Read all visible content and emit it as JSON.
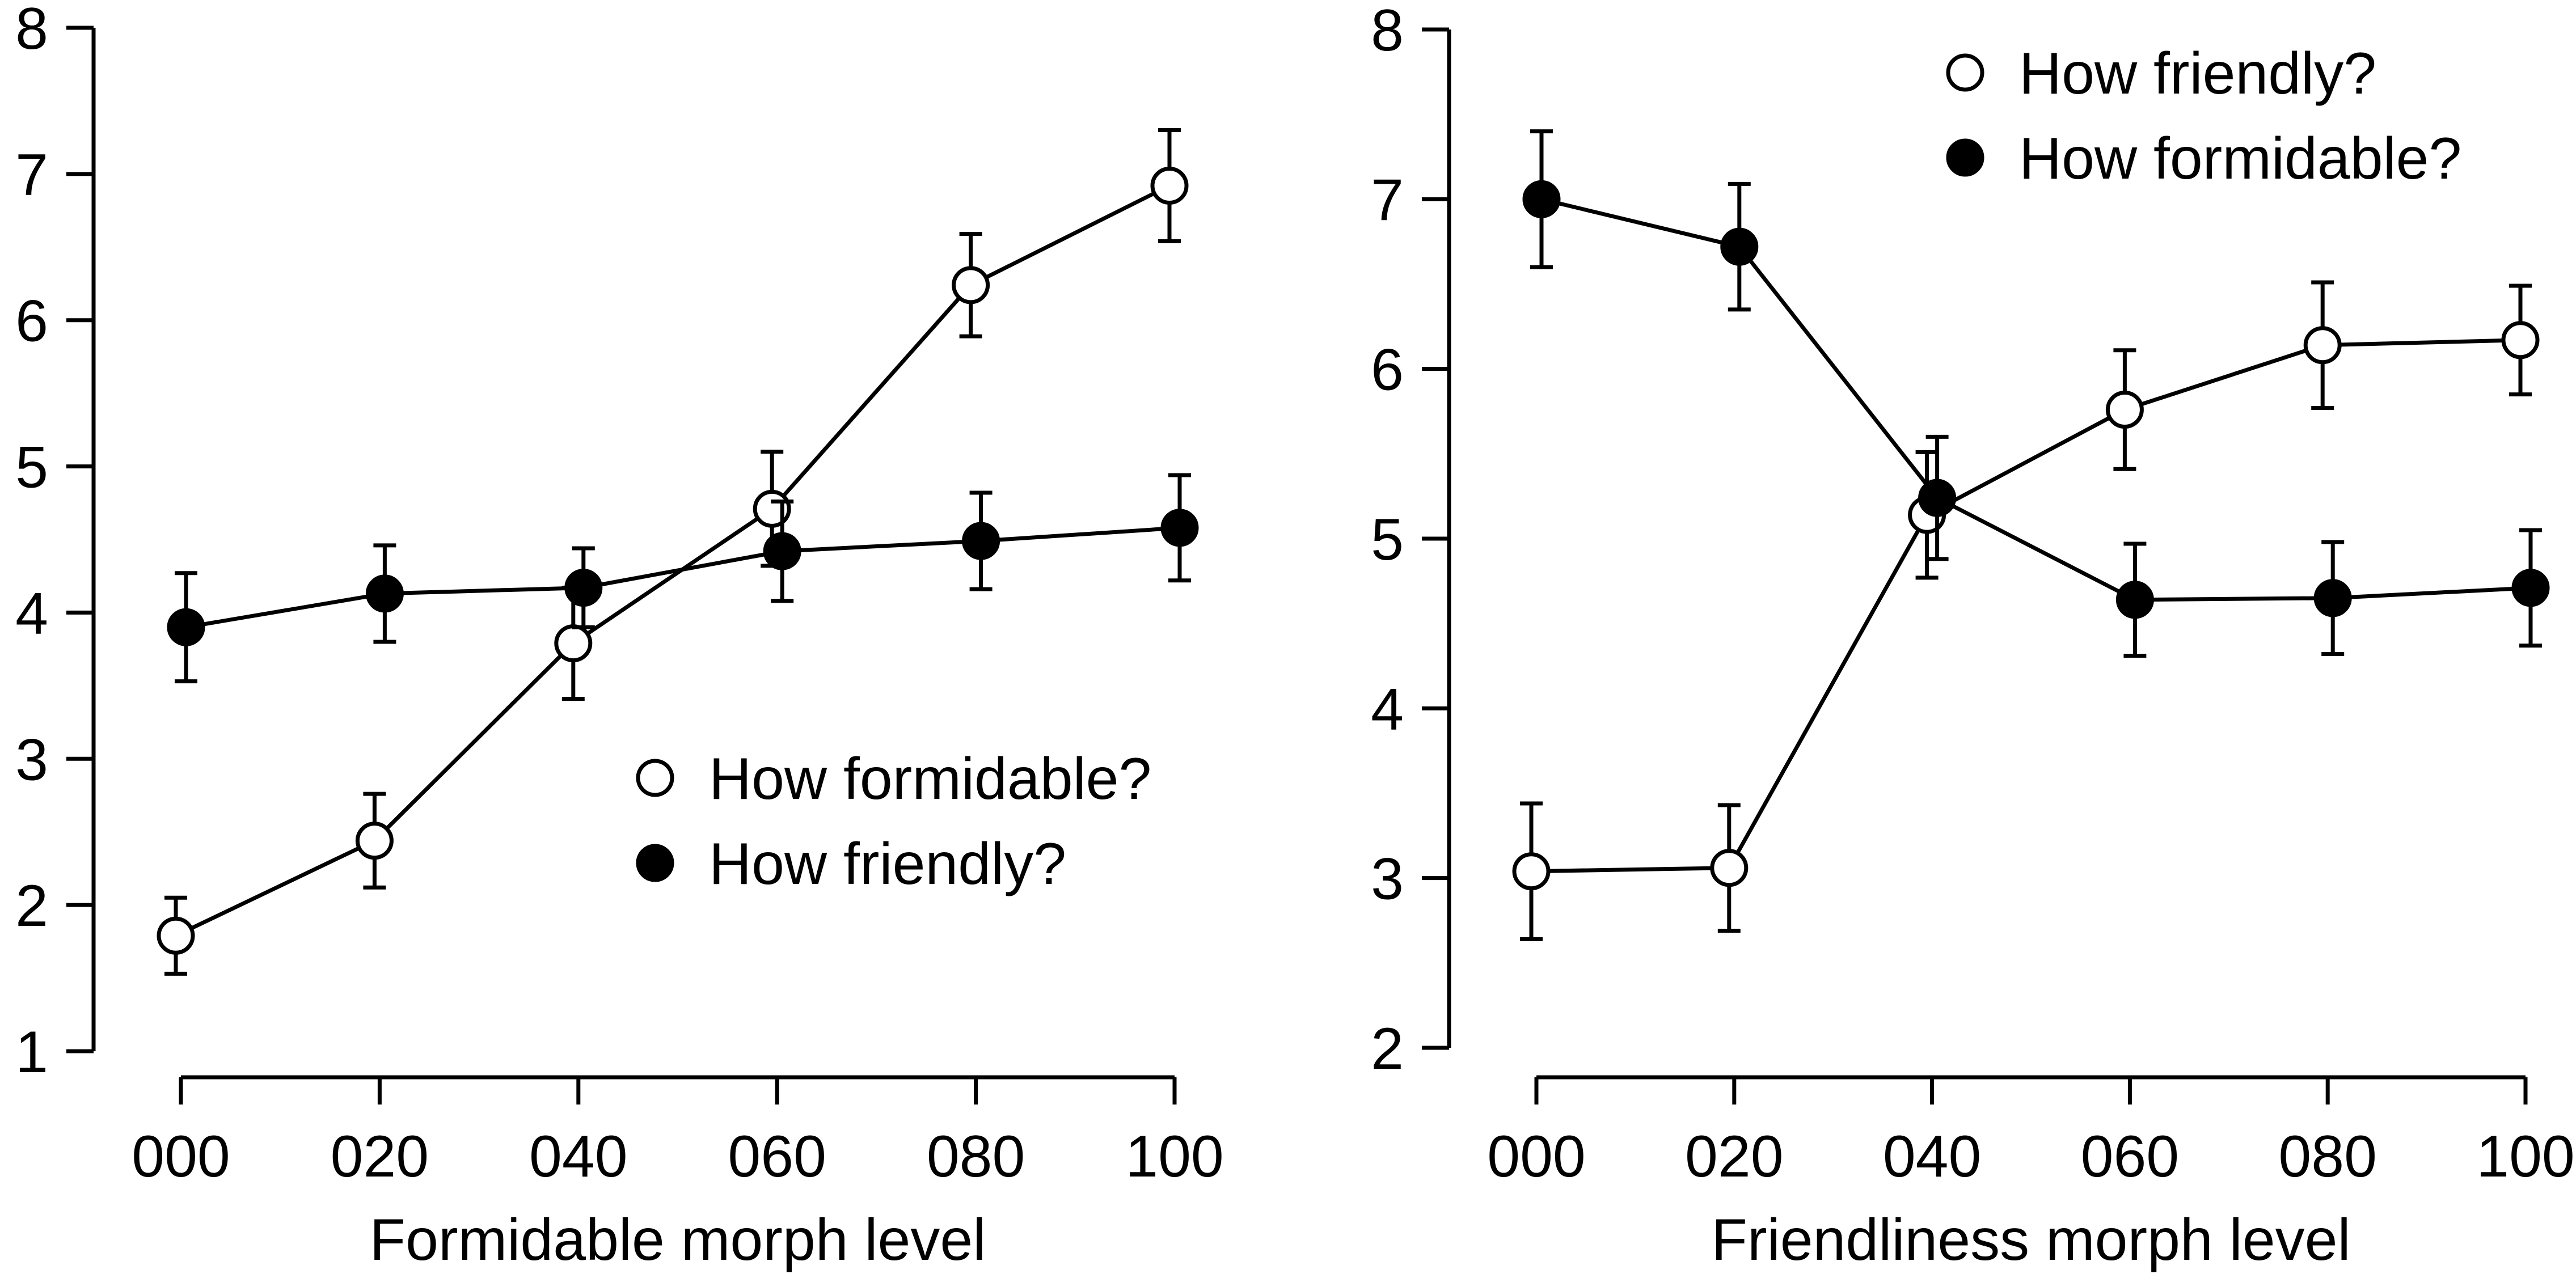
{
  "chart_data": [
    {
      "type": "line",
      "xlabel": "Formidable morph level",
      "ylabel": "",
      "ylim": [
        1,
        8
      ],
      "yticks": [
        "1",
        "2",
        "3",
        "4",
        "5",
        "6",
        "7",
        "8"
      ],
      "categories": [
        "000",
        "020",
        "040",
        "060",
        "080",
        "100"
      ],
      "grid": false,
      "legend_position": "bottom-right",
      "series": [
        {
          "name": "How formidable?",
          "marker": "open-circle",
          "values": [
            1.79,
            2.44,
            3.79,
            4.71,
            6.24,
            6.92
          ],
          "error": [
            0.26,
            0.32,
            0.38,
            0.39,
            0.35,
            0.38
          ]
        },
        {
          "name": "How friendly?",
          "marker": "filled-circle",
          "values": [
            3.9,
            4.13,
            4.17,
            4.42,
            4.49,
            4.58
          ],
          "error": [
            0.37,
            0.33,
            0.27,
            0.34,
            0.33,
            0.36
          ]
        }
      ]
    },
    {
      "type": "line",
      "xlabel": "Friendliness morph level",
      "ylabel": "",
      "ylim": [
        2,
        8
      ],
      "yticks": [
        "2",
        "3",
        "4",
        "5",
        "6",
        "7",
        "8"
      ],
      "categories": [
        "000",
        "020",
        "040",
        "060",
        "080",
        "100"
      ],
      "grid": false,
      "legend_position": "top-right",
      "series": [
        {
          "name": "How friendly?",
          "marker": "open-circle",
          "values": [
            3.04,
            3.06,
            5.14,
            5.76,
            6.14,
            6.17
          ],
          "error": [
            0.4,
            0.37,
            0.37,
            0.35,
            0.37,
            0.32
          ]
        },
        {
          "name": "How formidable?",
          "marker": "filled-circle",
          "values": [
            7.0,
            6.72,
            5.24,
            4.64,
            4.65,
            4.71
          ],
          "error": [
            0.4,
            0.37,
            0.36,
            0.33,
            0.33,
            0.34
          ]
        }
      ]
    }
  ]
}
